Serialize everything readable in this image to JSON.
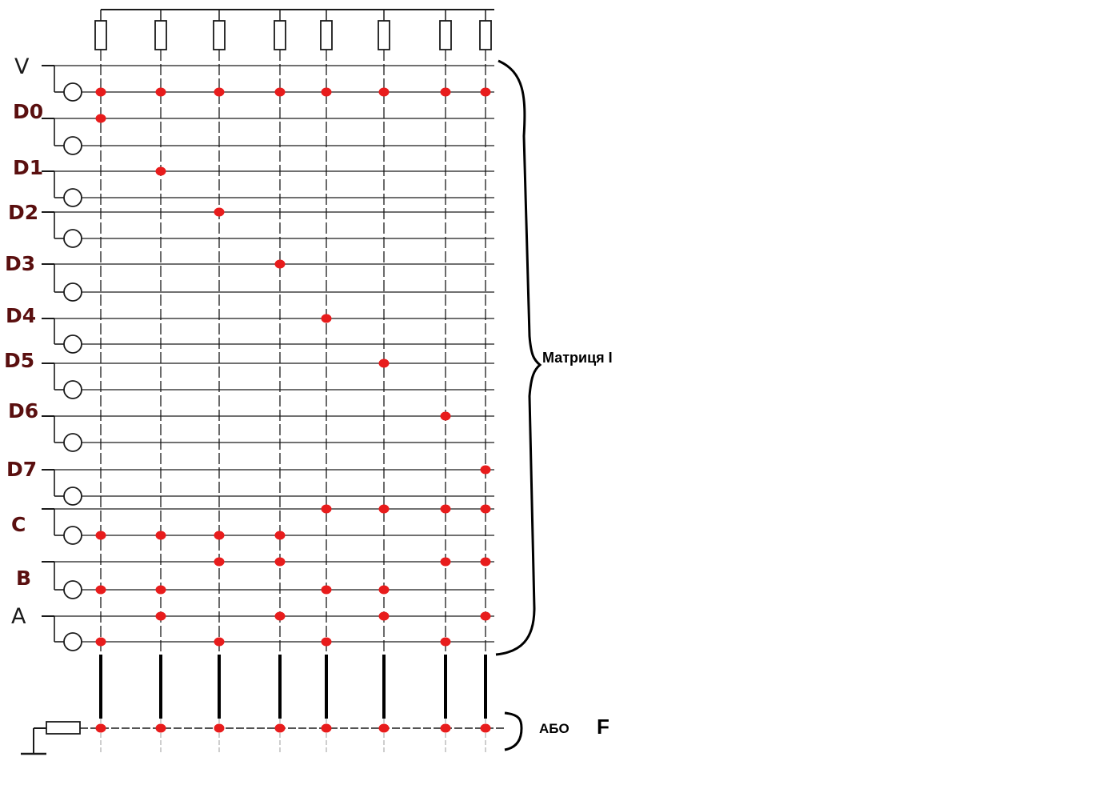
{
  "inputs": [
    {
      "label": "V",
      "style": "thin"
    },
    {
      "label": "D0",
      "style": "bold"
    },
    {
      "label": "D1",
      "style": "bold"
    },
    {
      "label": "D2",
      "style": "bold"
    },
    {
      "label": "D3",
      "style": "bold"
    },
    {
      "label": "D4",
      "style": "bold"
    },
    {
      "label": "D5",
      "style": "bold"
    },
    {
      "label": "D6",
      "style": "bold"
    },
    {
      "label": "D7",
      "style": "bold"
    },
    {
      "label": "C",
      "style": "bold"
    },
    {
      "label": "B",
      "style": "bold"
    },
    {
      "label": "A",
      "style": "thin"
    }
  ],
  "and_matrix_label": "Матриця І",
  "or_matrix_label": "АБО",
  "output_label": "F",
  "product_terms": 8,
  "connections": {
    "V_inv": [
      0,
      1,
      2,
      3,
      4,
      5,
      6,
      7
    ],
    "D0": [
      0
    ],
    "D1": [
      1
    ],
    "D2": [
      2
    ],
    "D3": [
      3
    ],
    "D4": [
      4
    ],
    "D5": [
      5
    ],
    "D6": [
      6
    ],
    "D7": [
      7
    ],
    "C": [
      4,
      5,
      6,
      7
    ],
    "C_inv": [
      0,
      1,
      2,
      3
    ],
    "B": [
      2,
      3,
      6,
      7
    ],
    "B_inv": [
      0,
      1,
      4,
      5
    ],
    "A": [
      1,
      3,
      5,
      7
    ],
    "A_inv": [
      0,
      2,
      4,
      6
    ],
    "OR": [
      0,
      1,
      2,
      3,
      4,
      5,
      6,
      7
    ]
  },
  "colors": {
    "dot": "#e81c1c",
    "wire": "#1a1a1a",
    "gridline": "#bdbdbd",
    "label": "#5a0f0f"
  }
}
